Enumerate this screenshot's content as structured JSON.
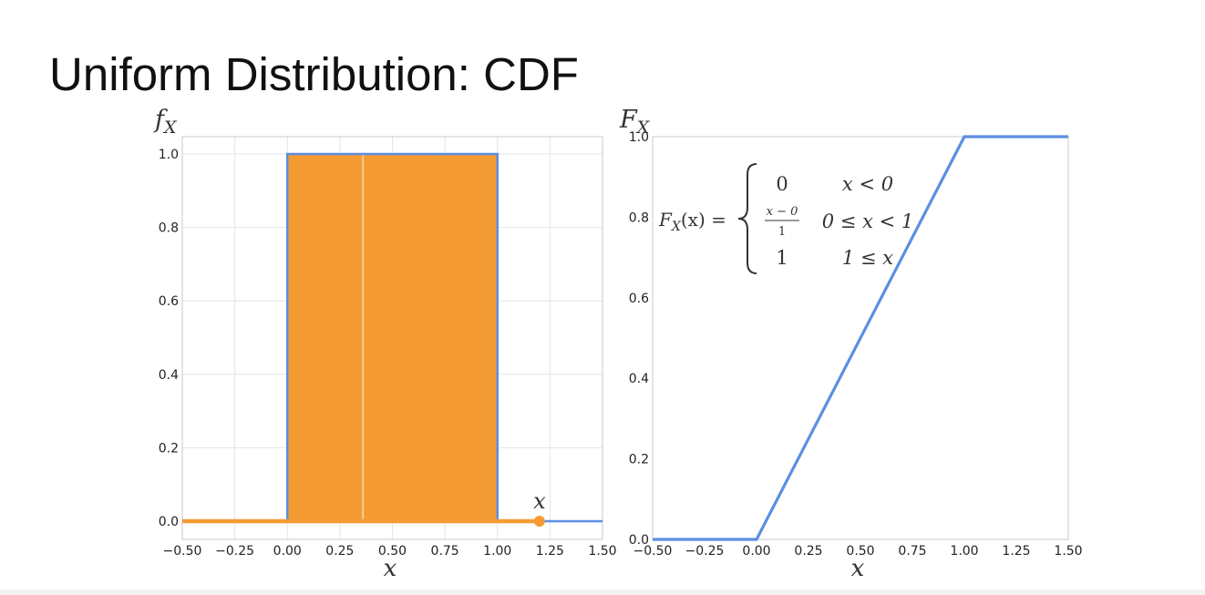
{
  "slide": {
    "title": "Uniform Distribution: CDF"
  },
  "colors": {
    "orange": "#f59b34",
    "blue": "#5b8fe3",
    "grid": "#e4e4e4",
    "frame": "#c8c8c8"
  },
  "chart_data": [
    {
      "type": "area",
      "ylabel_base": "f",
      "ylabel_sub": "X",
      "xlabel": "x",
      "xlim": [
        -0.5,
        1.5
      ],
      "ylim": [
        0.0,
        1.0
      ],
      "xticks": [
        "−0.50",
        "−0.25",
        "0.00",
        "0.25",
        "0.50",
        "0.75",
        "1.00",
        "1.25",
        "1.50"
      ],
      "xtick_values": [
        -0.5,
        -0.25,
        0.0,
        0.25,
        0.5,
        0.75,
        1.0,
        1.25,
        1.5
      ],
      "yticks": [
        "0.0",
        "0.2",
        "0.4",
        "0.6",
        "0.8",
        "1.0"
      ],
      "ytick_values": [
        0.0,
        0.2,
        0.4,
        0.6,
        0.8,
        1.0
      ],
      "grid": true,
      "series": [
        {
          "x": [
            -0.5,
            0.0,
            0.0,
            1.0,
            1.0,
            1.5
          ],
          "y": [
            0.0,
            0.0,
            1.0,
            1.0,
            0.0,
            0.0
          ]
        }
      ],
      "shaded_interval": [
        0.0,
        1.0
      ],
      "marker": {
        "x": 1.2,
        "y": 0.0,
        "label": "x"
      }
    },
    {
      "type": "line",
      "ylabel_base": "F",
      "ylabel_sub": "X",
      "xlabel": "x",
      "xlim": [
        -0.5,
        1.5
      ],
      "ylim": [
        0.0,
        1.0
      ],
      "xticks": [
        "−0.50",
        "−0.25",
        "0.00",
        "0.25",
        "0.50",
        "0.75",
        "1.00",
        "1.25",
        "1.50"
      ],
      "xtick_values": [
        -0.5,
        -0.25,
        0.0,
        0.25,
        0.5,
        0.75,
        1.0,
        1.25,
        1.5
      ],
      "yticks": [
        "0.0",
        "0.2",
        "0.4",
        "0.6",
        "0.8",
        "1.0"
      ],
      "ytick_values": [
        0.0,
        0.2,
        0.4,
        0.6,
        0.8,
        1.0
      ],
      "grid": false,
      "series": [
        {
          "x": [
            -0.5,
            0.0,
            1.0,
            1.5
          ],
          "y": [
            0.0,
            0.0,
            1.0,
            1.0
          ]
        }
      ],
      "annotation": {
        "lhs": "F",
        "lhs_sub": "X",
        "lhs_arg": "(x) =",
        "cases": [
          {
            "value": "0",
            "condition": "x < 0",
            "highlight": false
          },
          {
            "value_num": "x − 0",
            "value_den": "1",
            "condition": "0 ≤ x < 1",
            "highlight": false
          },
          {
            "value": "1",
            "condition": "1 ≤ x",
            "highlight": true
          }
        ]
      }
    }
  ]
}
